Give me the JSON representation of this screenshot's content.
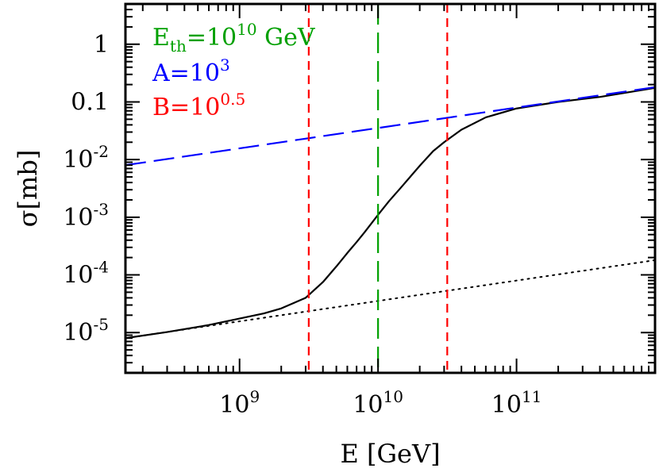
{
  "chart_data": {
    "type": "line",
    "title": "",
    "xlabel": "E [GeV]",
    "ylabel": "σ[mb]",
    "xscale": "log",
    "yscale": "log",
    "xlim": [
      150000000,
      1000000000000
    ],
    "ylim": [
      2e-06,
      5
    ],
    "grid": false,
    "legend_placement": "top-left",
    "x_ticks": [
      {
        "value": 1000000000,
        "base": "10",
        "exp": "9"
      },
      {
        "value": 10000000000,
        "base": "10",
        "exp": "10"
      },
      {
        "value": 100000000000,
        "base": "10",
        "exp": "11"
      }
    ],
    "y_ticks": [
      {
        "value": 1e-05,
        "base": "10",
        "exp": "-5"
      },
      {
        "value": 0.0001,
        "base": "10",
        "exp": "-4"
      },
      {
        "value": 0.001,
        "base": "10",
        "exp": "-3"
      },
      {
        "value": 0.01,
        "base": "10",
        "exp": "-2"
      },
      {
        "value": 0.1,
        "base": "0.1",
        "exp": ""
      },
      {
        "value": 1,
        "base": "1",
        "exp": ""
      }
    ],
    "legend_entries": [
      {
        "base": "E",
        "sub": "th",
        "mid": "=10",
        "sup": "10",
        "tail": " GeV",
        "color": "#00a000"
      },
      {
        "base": "A=10",
        "sub": "",
        "mid": "",
        "sup": "3",
        "tail": "",
        "color": "#0000ff"
      },
      {
        "base": "B=10",
        "sub": "",
        "mid": "",
        "sup": "0.5",
        "tail": "",
        "color": "#ff0000"
      }
    ],
    "vertical_lines": [
      {
        "x": 3160000000,
        "color": "#ff0000",
        "style": "dashed"
      },
      {
        "x": 10000000000,
        "color": "#00a000",
        "style": "long-dashed"
      },
      {
        "x": 31600000000,
        "color": "#ff0000",
        "style": "dashed"
      }
    ],
    "series": [
      {
        "style": "solid",
        "color": "#000000",
        "x": [
          150000000,
          300000000,
          600000000,
          1000000000,
          1500000000,
          2000000000,
          3000000000,
          4000000000,
          5000000000,
          6000000000,
          7000000000,
          8000000000,
          10000000000,
          12000000000,
          15000000000,
          20000000000,
          25000000000,
          30000000000,
          40000000000,
          60000000000,
          100000000000,
          200000000000,
          400000000000,
          1000000000000
        ],
        "y": [
          8e-06,
          1.02e-05,
          1.35e-05,
          1.75e-05,
          2.15e-05,
          2.62e-05,
          4e-05,
          7.5e-05,
          0.00014,
          0.00024,
          0.00037,
          0.00055,
          0.0011,
          0.0019,
          0.0035,
          0.0078,
          0.014,
          0.02,
          0.033,
          0.054,
          0.077,
          0.1,
          0.122,
          0.175
        ]
      },
      {
        "style": "dotted",
        "color": "#000000",
        "x": [
          150000000,
          1000000000000
        ],
        "y": [
          8e-06,
          0.00018
        ]
      },
      {
        "style": "long-dashed",
        "color": "#0000ff",
        "x": [
          150000000,
          1000000000000
        ],
        "y": [
          0.008,
          0.18
        ]
      }
    ]
  }
}
